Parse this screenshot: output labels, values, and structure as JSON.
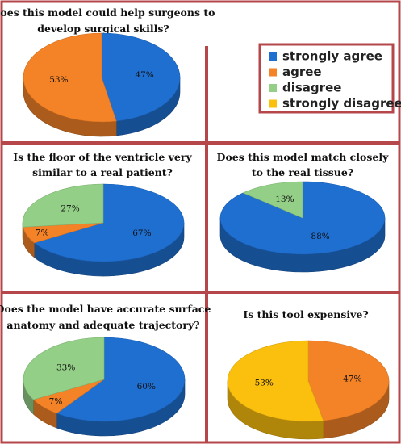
{
  "colors": {
    "strongly agree": "#1f6fd0",
    "agree": "#f48226",
    "disagree": "#93cf86",
    "strongly disagree": "#fbc00e",
    "frame": "#b5474b"
  },
  "legend": {
    "items": [
      {
        "key": "strongly agree",
        "label": "strongly agree"
      },
      {
        "key": "agree",
        "label": "agree"
      },
      {
        "key": "disagree",
        "label": "disagree"
      },
      {
        "key": "strongly disagree",
        "label": "strongly disagree"
      }
    ]
  },
  "chart_data": [
    {
      "type": "pie",
      "title_lines": [
        "Does this model could help surgeons to",
        "develop surgical skills?"
      ],
      "slices": [
        {
          "category": "strongly agree",
          "value": 47,
          "label": "47%"
        },
        {
          "category": "agree",
          "value": 53,
          "label": "53%"
        }
      ]
    },
    {
      "type": "pie",
      "title_lines": [
        "Is the floor of the ventricle very",
        "similar to a real patient?"
      ],
      "slices": [
        {
          "category": "strongly agree",
          "value": 67,
          "label": "67%"
        },
        {
          "category": "agree",
          "value": 7,
          "label": "7%"
        },
        {
          "category": "disagree",
          "value": 27,
          "label": "27%"
        }
      ]
    },
    {
      "type": "pie",
      "title_lines": [
        "Does this model match closely",
        "to the real tissue?"
      ],
      "slices": [
        {
          "category": "strongly agree",
          "value": 88,
          "label": "88%"
        },
        {
          "category": "disagree",
          "value": 13,
          "label": "13%"
        }
      ]
    },
    {
      "type": "pie",
      "title_lines": [
        "Does the model have accurate surface",
        "anatomy  and adequate trajectory?"
      ],
      "slices": [
        {
          "category": "strongly agree",
          "value": 60,
          "label": "60%"
        },
        {
          "category": "agree",
          "value": 7,
          "label": "7%"
        },
        {
          "category": "disagree",
          "value": 33,
          "label": "33%"
        }
      ]
    },
    {
      "type": "pie",
      "title_lines": [
        "Is this tool expensive?"
      ],
      "slices": [
        {
          "category": "agree",
          "value": 47,
          "label": "47%"
        },
        {
          "category": "strongly disagree",
          "value": 53,
          "label": "53%"
        }
      ]
    }
  ]
}
